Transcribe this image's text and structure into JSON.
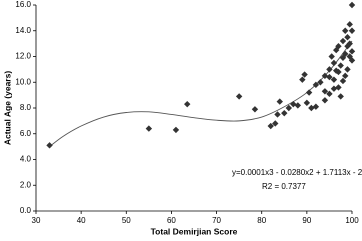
{
  "chart_data": {
    "type": "scatter",
    "xlabel": "Total Demirjian Score",
    "ylabel": "Actual Age (years)",
    "annotations": [
      "y=0.0001x3 - 0.0280x2 + 1.7113x - 26.4335",
      "R2 = 0.7377"
    ],
    "xlim": [
      30,
      100
    ],
    "xticks": [
      30,
      40,
      50,
      60,
      70,
      80,
      90,
      100
    ],
    "ylim": [
      0,
      16
    ],
    "yticks": [
      {
        "value": 0,
        "label": "0.0"
      },
      {
        "value": 2,
        "label": "2.0"
      },
      {
        "value": 4,
        "label": "4.0"
      },
      {
        "value": 6,
        "label": "6.0"
      },
      {
        "value": 8,
        "label": "8.0"
      },
      {
        "value": 10,
        "label": "10.0"
      },
      {
        "value": 12,
        "label": "12.0"
      },
      {
        "value": 14,
        "label": "14.0"
      },
      {
        "value": 16,
        "label": "16.0"
      }
    ],
    "grid": false,
    "color": "#333333",
    "x": [
      33,
      55,
      61,
      63.5,
      75,
      78.5,
      82,
      83,
      83.5,
      84,
      85,
      86,
      87,
      88,
      89,
      89.5,
      90,
      90.5,
      91,
      92,
      92,
      93,
      94,
      94,
      95,
      95,
      95.5,
      96,
      96,
      96.5,
      97,
      97,
      97,
      97.5,
      98,
      98,
      98,
      98.5,
      98.5,
      99,
      99,
      99,
      99.5,
      99.5,
      99.5,
      100,
      100,
      100,
      100,
      96,
      97.5,
      98.5,
      95,
      94,
      96.5
    ],
    "values": [
      5.1,
      6.4,
      6.3,
      8.3,
      8.9,
      7.9,
      6.6,
      6.8,
      7.5,
      8.5,
      7.6,
      8.0,
      8.3,
      8.2,
      10.2,
      10.6,
      8.4,
      9.2,
      8.0,
      9.8,
      8.1,
      10.0,
      9.3,
      10.5,
      9.1,
      11.0,
      12.0,
      10.2,
      11.5,
      12.5,
      9.6,
      10.8,
      12.8,
      11.3,
      10.1,
      11.9,
      13.2,
      12.2,
      14.0,
      11.0,
      12.8,
      13.5,
      12.0,
      14.5,
      13.0,
      16.0,
      12.4,
      14.0,
      11.7,
      9.5,
      8.9,
      10.5,
      10.4,
      8.6,
      10.9
    ],
    "trendline": {
      "color": "#555555",
      "x": [
        33,
        36,
        40,
        45,
        50,
        55,
        60,
        65,
        70,
        75,
        80,
        85,
        90,
        95,
        100
      ],
      "values": [
        5.0,
        5.8,
        6.6,
        7.3,
        7.65,
        7.7,
        7.5,
        7.25,
        7.05,
        7.0,
        7.3,
        8.1,
        9.2,
        10.9,
        13.2
      ]
    }
  }
}
